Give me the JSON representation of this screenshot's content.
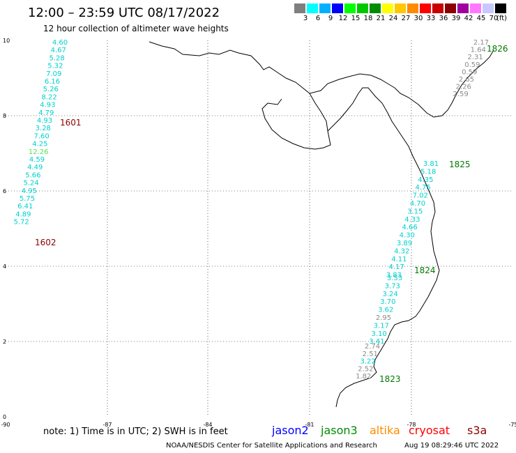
{
  "title": "12:00 – 23:59 UTC 08/17/2022",
  "subtitle": "12 hour collection of altimeter wave heights",
  "scale": {
    "unit": "(ft)",
    "bins": [
      {
        "label": "3",
        "color": "#7f7f7f"
      },
      {
        "label": "6",
        "color": "#00ffff"
      },
      {
        "label": "9",
        "color": "#00b0ff"
      },
      {
        "label": "12",
        "color": "#0000ff"
      },
      {
        "label": "15",
        "color": "#00ff00"
      },
      {
        "label": "18",
        "color": "#00c800"
      },
      {
        "label": "21",
        "color": "#008c00"
      },
      {
        "label": "24",
        "color": "#ffff00"
      },
      {
        "label": "27",
        "color": "#ffc800"
      },
      {
        "label": "30",
        "color": "#ff8c00"
      },
      {
        "label": "33",
        "color": "#ff0000"
      },
      {
        "label": "36",
        "color": "#c80000"
      },
      {
        "label": "39",
        "color": "#8c0000"
      },
      {
        "label": "42",
        "color": "#a000a0"
      },
      {
        "label": "45",
        "color": "#ff78ff"
      },
      {
        "label": "70",
        "color": "#c8c8ff"
      },
      {
        "label": "",
        "color": "#000000"
      }
    ]
  },
  "axes": {
    "x_ticks": [
      "-90",
      "-87",
      "-84",
      "-81",
      "-78",
      "-75"
    ],
    "y_ticks": [
      "0",
      "2",
      "4",
      "6",
      "8",
      "10"
    ]
  },
  "tracks": [
    {
      "time_label": "1601",
      "time_color": "#8b0000",
      "values": [
        {
          "v": "4.60",
          "color": "#00cfcf"
        },
        {
          "v": "4.67",
          "color": "#00cfcf"
        },
        {
          "v": "5.28",
          "color": "#00cfcf"
        },
        {
          "v": "5.32",
          "color": "#00cfcf"
        },
        {
          "v": "7.09",
          "color": "#00cfcf"
        },
        {
          "v": "6.16",
          "color": "#00cfcf"
        },
        {
          "v": "5.26",
          "color": "#00cfcf"
        },
        {
          "v": "8.22",
          "color": "#00cfcf"
        },
        {
          "v": "4.93",
          "color": "#00cfcf"
        },
        {
          "v": "4.79",
          "color": "#00cfcf"
        },
        {
          "v": "4.93",
          "color": "#00cfcf"
        },
        {
          "v": "3.28",
          "color": "#00cfcf"
        },
        {
          "v": "7.60",
          "color": "#00cfcf"
        },
        {
          "v": "4.25",
          "color": "#00cfcf"
        },
        {
          "v": "12.26",
          "color": "#55e055"
        }
      ]
    },
    {
      "time_label": "1602",
      "time_color": "#8b0000",
      "values": [
        {
          "v": "4.59",
          "color": "#00cfcf"
        },
        {
          "v": "4.49",
          "color": "#00cfcf"
        },
        {
          "v": "5.66",
          "color": "#00cfcf"
        },
        {
          "v": "5.24",
          "color": "#00cfcf"
        },
        {
          "v": "4.95",
          "color": "#00cfcf"
        },
        {
          "v": "5.75",
          "color": "#00cfcf"
        },
        {
          "v": "6.41",
          "color": "#00cfcf"
        },
        {
          "v": "4.89",
          "color": "#00cfcf"
        },
        {
          "v": "5.72",
          "color": "#00cfcf"
        }
      ]
    },
    {
      "time_label": "1826",
      "time_color": "#007800",
      "values": [
        {
          "v": "2.17",
          "color": "#8a8a8a"
        },
        {
          "v": "1.64",
          "color": "#8a8a8a"
        },
        {
          "v": "2.31",
          "color": "#8a8a8a"
        },
        {
          "v": "0.59",
          "color": "#8a8a8a"
        },
        {
          "v": "0.59",
          "color": "#8a8a8a"
        },
        {
          "v": "2.65",
          "color": "#8a8a8a"
        },
        {
          "v": "2.26",
          "color": "#8a8a8a"
        },
        {
          "v": "2.59",
          "color": "#8a8a8a"
        }
      ]
    },
    {
      "time_label": "1825",
      "time_color": "#007800",
      "values": [
        {
          "v": "3.81",
          "color": "#00cfcf"
        },
        {
          "v": "5.18",
          "color": "#00cfcf"
        },
        {
          "v": "4.35",
          "color": "#00cfcf"
        },
        {
          "v": "4.75",
          "color": "#00cfcf"
        },
        {
          "v": "7.02",
          "color": "#00cfcf"
        },
        {
          "v": "4.70",
          "color": "#00cfcf"
        },
        {
          "v": "3.15",
          "color": "#00cfcf"
        },
        {
          "v": "4.33",
          "color": "#00cfcf"
        },
        {
          "v": "4.66",
          "color": "#00cfcf"
        },
        {
          "v": "4.30",
          "color": "#00cfcf"
        },
        {
          "v": "3.89",
          "color": "#00cfcf"
        },
        {
          "v": "4.32",
          "color": "#00cfcf"
        },
        {
          "v": "4.11",
          "color": "#00cfcf"
        },
        {
          "v": "4.17",
          "color": "#00cfcf"
        },
        {
          "v": "3.83",
          "color": "#00cfcf"
        }
      ]
    },
    {
      "time_label": "1824",
      "time_color": "#007800",
      "values": [
        {
          "v": "3.53",
          "color": "#00cfcf"
        },
        {
          "v": "3.73",
          "color": "#00cfcf"
        },
        {
          "v": "3.24",
          "color": "#00cfcf"
        },
        {
          "v": "3.70",
          "color": "#00cfcf"
        },
        {
          "v": "3.62",
          "color": "#00cfcf"
        },
        {
          "v": "2.95",
          "color": "#8a8a8a"
        },
        {
          "v": "3.17",
          "color": "#00cfcf"
        },
        {
          "v": "3.10",
          "color": "#00cfcf"
        },
        {
          "v": "3.41",
          "color": "#00cfcf"
        }
      ]
    },
    {
      "time_label": "1823",
      "time_color": "#007800",
      "values": [
        {
          "v": "2.74",
          "color": "#8a8a8a"
        },
        {
          "v": "2.51",
          "color": "#8a8a8a"
        },
        {
          "v": "3.22",
          "color": "#00cfcf"
        },
        {
          "v": "2.52",
          "color": "#8a8a8a"
        },
        {
          "v": "1.82",
          "color": "#8a8a8a"
        }
      ]
    }
  ],
  "footer": {
    "note": "note:  1) Time is in UTC;  2) SWH is in feet",
    "satellites": [
      {
        "name": "jason2",
        "color": "#0000ff"
      },
      {
        "name": "jason3",
        "color": "#008c00"
      },
      {
        "name": "altika",
        "color": "#ff8c00"
      },
      {
        "name": "cryosat",
        "color": "#ff0000"
      },
      {
        "name": "s3a",
        "color": "#8b0000"
      }
    ],
    "credit": "NOAA/NESDIS Center for Satellite Applications and Research",
    "timestamp": "Aug 19 08:29:46 UTC 2022"
  }
}
